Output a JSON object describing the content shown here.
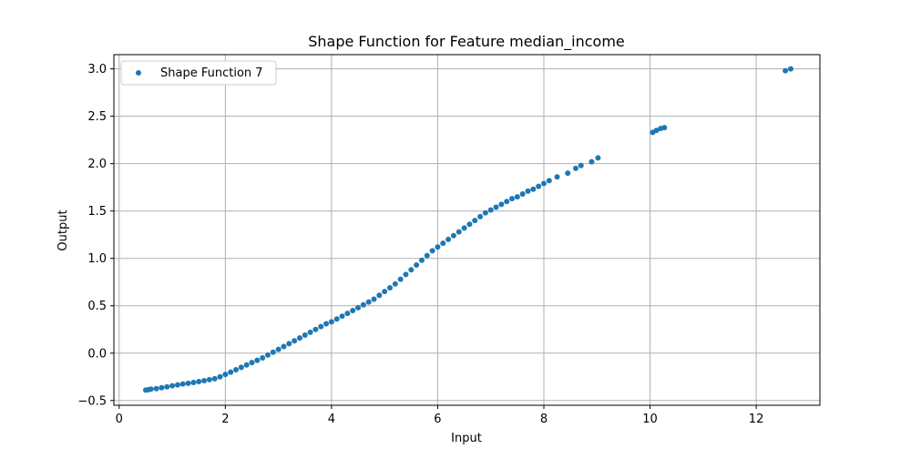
{
  "chart_data": {
    "type": "scatter",
    "title": "Shape Function for Feature median_income",
    "xlabel": "Input",
    "ylabel": "Output",
    "xlim": [
      -0.1,
      13.2
    ],
    "ylim": [
      -0.55,
      3.15
    ],
    "xticks": [
      0,
      2,
      4,
      6,
      8,
      10,
      12
    ],
    "yticks": [
      -0.5,
      0.0,
      0.5,
      1.0,
      1.5,
      2.0,
      2.5,
      3.0
    ],
    "xtick_labels": [
      "0",
      "2",
      "4",
      "6",
      "8",
      "10",
      "12"
    ],
    "ytick_labels": [
      "−0.5",
      "0.0",
      "0.5",
      "1.0",
      "1.5",
      "2.0",
      "2.5",
      "3.0"
    ],
    "grid": true,
    "legend_position": "top-left",
    "series": [
      {
        "name": "Shape Function 7",
        "color": "#1f77b4",
        "x": [
          0.5,
          0.55,
          0.6,
          0.7,
          0.8,
          0.9,
          1.0,
          1.1,
          1.2,
          1.3,
          1.4,
          1.5,
          1.6,
          1.7,
          1.8,
          1.9,
          2.0,
          2.1,
          2.2,
          2.3,
          2.4,
          2.5,
          2.6,
          2.7,
          2.8,
          2.9,
          3.0,
          3.1,
          3.2,
          3.3,
          3.4,
          3.5,
          3.6,
          3.7,
          3.8,
          3.9,
          4.0,
          4.1,
          4.2,
          4.3,
          4.4,
          4.5,
          4.6,
          4.7,
          4.8,
          4.9,
          5.0,
          5.1,
          5.2,
          5.3,
          5.4,
          5.5,
          5.6,
          5.7,
          5.8,
          5.9,
          6.0,
          6.1,
          6.2,
          6.3,
          6.4,
          6.5,
          6.6,
          6.7,
          6.8,
          6.9,
          7.0,
          7.1,
          7.2,
          7.3,
          7.4,
          7.5,
          7.6,
          7.7,
          7.8,
          7.9,
          8.0,
          8.1,
          8.25,
          8.45,
          8.6,
          8.7,
          8.9,
          9.02,
          10.05,
          10.12,
          10.2,
          10.27,
          12.55,
          12.65
        ],
        "y": [
          -0.39,
          -0.385,
          -0.38,
          -0.375,
          -0.365,
          -0.355,
          -0.345,
          -0.335,
          -0.325,
          -0.318,
          -0.31,
          -0.3,
          -0.29,
          -0.28,
          -0.27,
          -0.25,
          -0.225,
          -0.2,
          -0.175,
          -0.15,
          -0.125,
          -0.1,
          -0.075,
          -0.05,
          -0.02,
          0.01,
          0.04,
          0.07,
          0.1,
          0.13,
          0.16,
          0.19,
          0.22,
          0.25,
          0.28,
          0.31,
          0.33,
          0.36,
          0.39,
          0.42,
          0.45,
          0.48,
          0.51,
          0.54,
          0.57,
          0.61,
          0.65,
          0.69,
          0.73,
          0.78,
          0.83,
          0.88,
          0.93,
          0.98,
          1.03,
          1.08,
          1.12,
          1.16,
          1.2,
          1.24,
          1.28,
          1.32,
          1.36,
          1.4,
          1.44,
          1.48,
          1.51,
          1.54,
          1.57,
          1.6,
          1.63,
          1.65,
          1.68,
          1.71,
          1.73,
          1.76,
          1.79,
          1.82,
          1.86,
          1.9,
          1.95,
          1.98,
          2.02,
          2.06,
          2.33,
          2.35,
          2.37,
          2.38,
          2.98,
          3.0
        ]
      }
    ]
  }
}
